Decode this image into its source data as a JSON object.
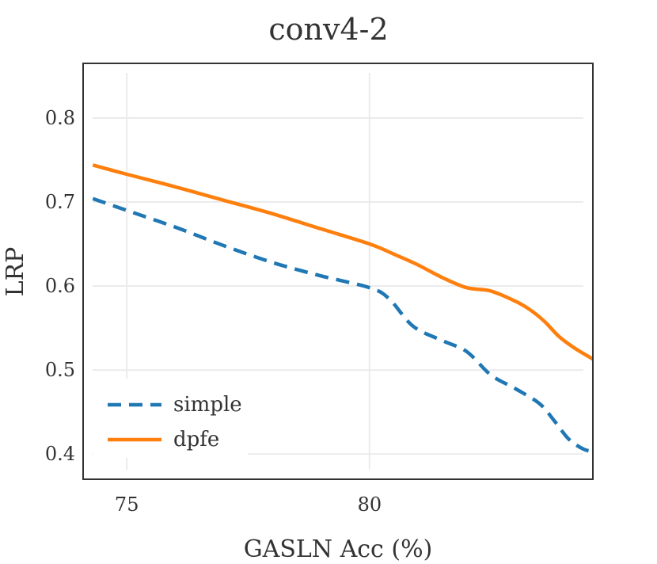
{
  "chart_data": {
    "type": "line",
    "title": "conv4-2",
    "xlabel": "GASLN Acc (%)",
    "ylabel": "LRP",
    "xlim": [
      74.1,
      84.6
    ],
    "ylim": [
      0.37,
      0.865
    ],
    "xticks": [
      75,
      80
    ],
    "xtick_labels": [
      "75",
      "80"
    ],
    "yticks": [
      0.4,
      0.5,
      0.6,
      0.7,
      0.8
    ],
    "ytick_labels": [
      "0.4",
      "0.5",
      "0.6",
      "0.7",
      "0.8"
    ],
    "grid": true,
    "legend_position": "bottom-left",
    "series": [
      {
        "name": "simple",
        "style": "dashed",
        "color": "#1f77b4",
        "x": [
          74.3,
          75.0,
          76.0,
          77.0,
          78.0,
          79.0,
          80.0,
          80.4,
          80.9,
          81.5,
          82.0,
          82.5,
          83.0,
          83.5,
          83.8,
          84.1,
          84.4,
          84.6
        ],
        "y": [
          0.704,
          0.69,
          0.67,
          0.648,
          0.628,
          0.612,
          0.598,
          0.585,
          0.552,
          0.535,
          0.522,
          0.494,
          0.478,
          0.46,
          0.44,
          0.418,
          0.406,
          0.403
        ]
      },
      {
        "name": "dpfe",
        "style": "solid",
        "color": "#ff7f0e",
        "x": [
          74.3,
          75.0,
          76.0,
          77.0,
          78.0,
          79.0,
          80.0,
          80.5,
          81.0,
          81.5,
          82.0,
          82.5,
          83.0,
          83.3,
          83.6,
          83.9,
          84.2,
          84.6
        ],
        "y": [
          0.744,
          0.733,
          0.718,
          0.702,
          0.686,
          0.668,
          0.65,
          0.638,
          0.625,
          0.61,
          0.598,
          0.594,
          0.582,
          0.572,
          0.558,
          0.54,
          0.527,
          0.513
        ]
      }
    ]
  }
}
